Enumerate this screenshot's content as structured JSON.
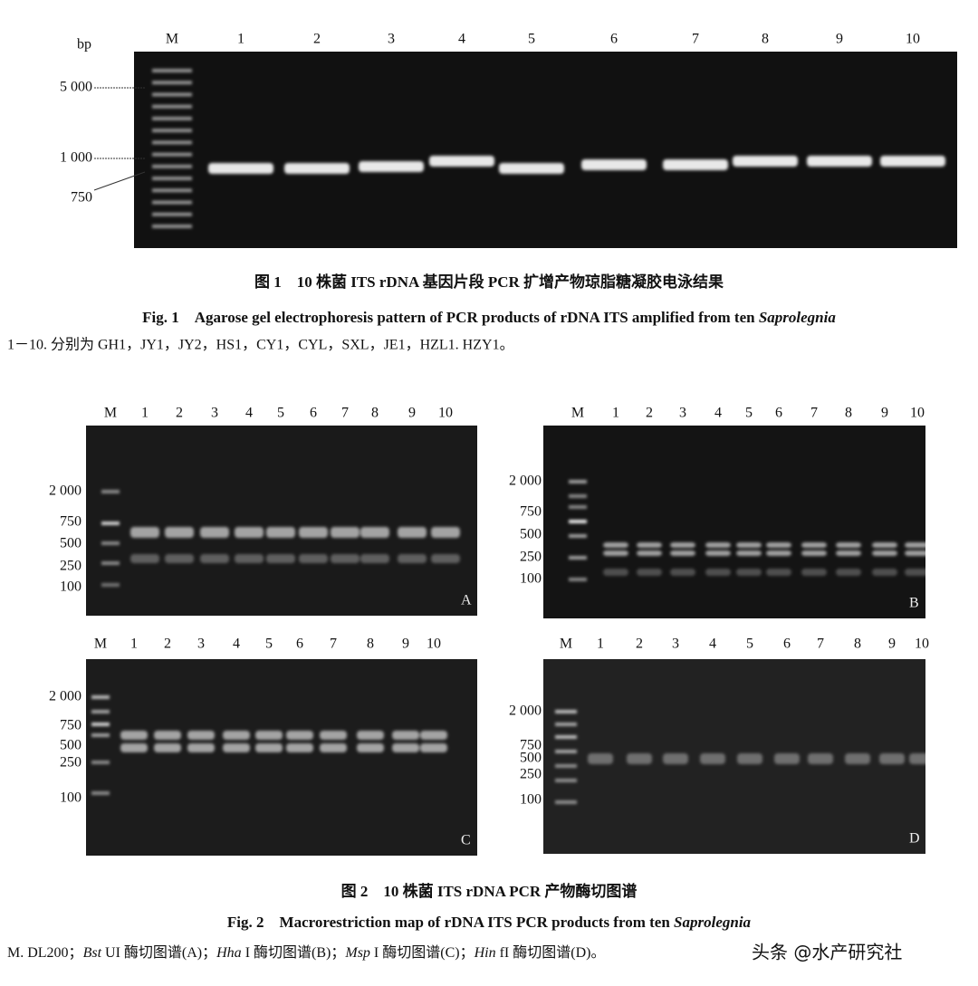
{
  "figure1": {
    "unit": "bp",
    "lanes": [
      "M",
      "1",
      "2",
      "3",
      "4",
      "5",
      "6",
      "7",
      "8",
      "9",
      "10"
    ],
    "size_labels": [
      "5 000",
      "1 000",
      "750"
    ],
    "caption_cn": "图 1　10 株菌 ITS rDNA 基因片段 PCR 扩增产物琼脂糖凝胶电泳结果",
    "caption_en": "Fig. 1　Agarose gel electrophoresis pattern of PCR products of rDNA ITS amplified from ten ",
    "caption_en_italic": "Saprolegnia",
    "note": "1－10. 分别为 GH1，JY1，JY2，HS1，CY1，CYL，SXL，JE1，HZL1. HZY1。"
  },
  "figure2": {
    "panels": [
      {
        "letter": "A",
        "lanes": [
          "M",
          "1",
          "2",
          "3",
          "4",
          "5",
          "6",
          "7",
          "8",
          "9",
          "10"
        ],
        "size_labels": [
          "2 000",
          "750",
          "500",
          "250",
          "100"
        ]
      },
      {
        "letter": "B",
        "lanes": [
          "M",
          "1",
          "2",
          "3",
          "4",
          "5",
          "6",
          "7",
          "8",
          "9",
          "10"
        ],
        "size_labels": [
          "2 000",
          "750",
          "500",
          "250",
          "100"
        ]
      },
      {
        "letter": "C",
        "lanes": [
          "M",
          "1",
          "2",
          "3",
          "4",
          "5",
          "6",
          "7",
          "8",
          "9",
          "10"
        ],
        "size_labels": [
          "2 000",
          "750",
          "500",
          "250",
          "100"
        ]
      },
      {
        "letter": "D",
        "lanes": [
          "M",
          "1",
          "2",
          "3",
          "4",
          "5",
          "6",
          "7",
          "8",
          "9",
          "10"
        ],
        "size_labels": [
          "2 000",
          "750",
          "500",
          "250",
          "100"
        ]
      }
    ],
    "caption_cn": "图 2　10 株菌 ITS rDNA PCR 产物酶切图谱",
    "caption_en": "Fig. 2　Macrorestriction map of rDNA ITS PCR products from ten ",
    "caption_en_italic": "Saprolegnia",
    "note": [
      {
        "text": "M. DL200；",
        "italic": false
      },
      {
        "text": "Bst",
        "italic": true
      },
      {
        "text": " UI 酶切图谱(A)；",
        "italic": false
      },
      {
        "text": "Hha",
        "italic": true
      },
      {
        "text": " I 酶切图谱(B)；",
        "italic": false
      },
      {
        "text": "Msp",
        "italic": true
      },
      {
        "text": " I 酶切图谱(C)；",
        "italic": false
      },
      {
        "text": "Hin",
        "italic": true
      },
      {
        "text": " fI 酶切图谱(D)。",
        "italic": false
      }
    ]
  },
  "watermark": "头条 @水产研究社"
}
